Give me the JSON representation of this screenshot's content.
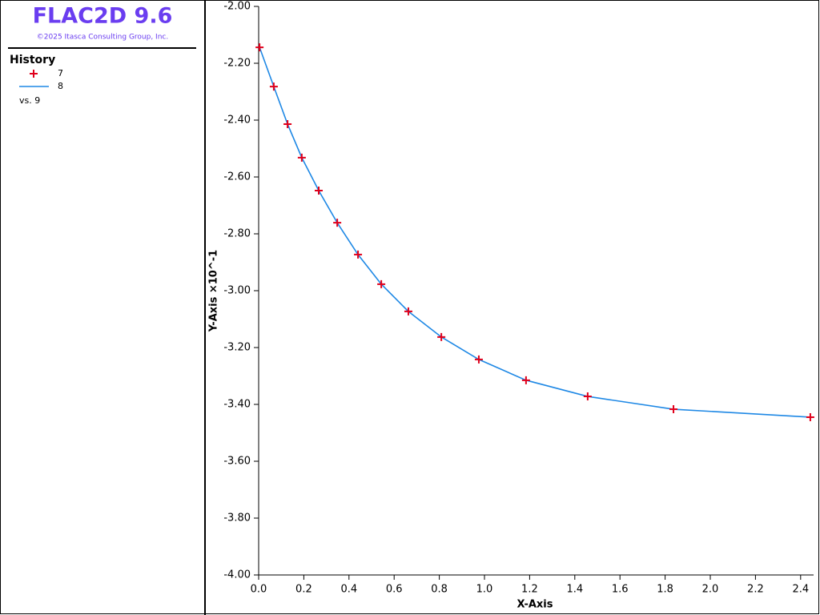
{
  "app": {
    "title": "FLAC2D 9.6",
    "copyright": "©2025 Itasca Consulting Group, Inc.",
    "panel_title": "History"
  },
  "chart_data": {
    "type": "line",
    "x_label": "X-Axis",
    "y_label": "Y-Axis ×10^-1",
    "x_history": "vs. 9",
    "x": [
      0.004,
      0.067,
      0.128,
      0.191,
      0.266,
      0.348,
      0.44,
      0.543,
      0.663,
      0.809,
      0.975,
      1.184,
      1.457,
      1.837,
      2.443
    ],
    "series": [
      {
        "name": "7",
        "color": "#e0001b",
        "style": "marker",
        "values": [
          -2.144,
          -2.282,
          -2.414,
          -2.532,
          -2.648,
          -2.761,
          -2.873,
          -2.977,
          -3.073,
          -3.163,
          -3.242,
          -3.315,
          -3.372,
          -3.417,
          -3.445
        ]
      },
      {
        "name": "8",
        "color": "#1e88e5",
        "style": "line",
        "values": [
          -2.144,
          -2.282,
          -2.414,
          -2.532,
          -2.648,
          -2.761,
          -2.873,
          -2.977,
          -3.073,
          -3.163,
          -3.242,
          -3.315,
          -3.372,
          -3.417,
          -3.445
        ]
      }
    ],
    "xlim": [
      0,
      2.45
    ],
    "xticks": [
      {
        "value": 0,
        "label": "0.0"
      },
      0.2,
      0.4,
      0.6,
      0.8,
      {
        "value": 1,
        "label": "1.0"
      },
      1.2,
      1.4,
      1.6,
      1.8,
      {
        "value": 2,
        "label": "2.0"
      },
      2.2,
      2.4
    ],
    "ylim": [
      -4,
      -2
    ],
    "yticks": [
      {
        "value": -2,
        "label": "-2.00"
      },
      {
        "value": -2.2,
        "label": "-2.20"
      },
      {
        "value": -2.4,
        "label": "-2.40"
      },
      {
        "value": -2.6,
        "label": "-2.60"
      },
      {
        "value": -2.8,
        "label": "-2.80"
      },
      {
        "value": -3,
        "label": "-3.00"
      },
      {
        "value": -3.2,
        "label": "-3.20"
      },
      {
        "value": -3.4,
        "label": "-3.40"
      },
      {
        "value": -3.6,
        "label": "-3.60"
      },
      {
        "value": -3.8,
        "label": "-3.80"
      },
      {
        "value": -4,
        "label": "-4.00"
      }
    ],
    "grid": false
  }
}
